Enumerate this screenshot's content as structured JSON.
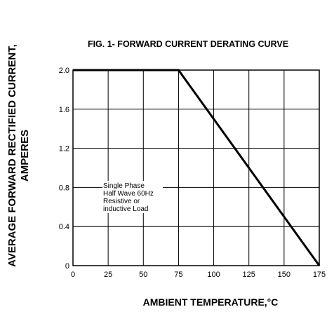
{
  "chart_data": {
    "type": "line",
    "title": "FIG. 1- FORWARD CURRENT DERATING CURVE",
    "xlabel": "AMBIENT TEMPERATURE,°C",
    "ylabel_line1": "AVERAGE FORWARD RECTIFIED CURRENT,",
    "ylabel_line2": "AMPERES",
    "xlim": [
      0,
      175
    ],
    "ylim": [
      0,
      2.0
    ],
    "x_ticks": [
      0,
      25,
      50,
      75,
      100,
      125,
      150,
      175
    ],
    "y_ticks": [
      0,
      0.4,
      0.8,
      1.2,
      1.6,
      2.0
    ],
    "x_tick_labels": [
      "0",
      "25",
      "50",
      "75",
      "100",
      "125",
      "150",
      "175"
    ],
    "y_tick_labels": [
      "0",
      "0.4",
      "0.8",
      "1.2",
      "1.6",
      "2.0"
    ],
    "grid": true,
    "series": [
      {
        "x": [
          0,
          75,
          175
        ],
        "y": [
          2.0,
          2.0,
          0
        ]
      }
    ],
    "annotation": [
      "Single Phase",
      "Half Wave 60Hz",
      "Resistive or",
      "inductive Load"
    ]
  }
}
